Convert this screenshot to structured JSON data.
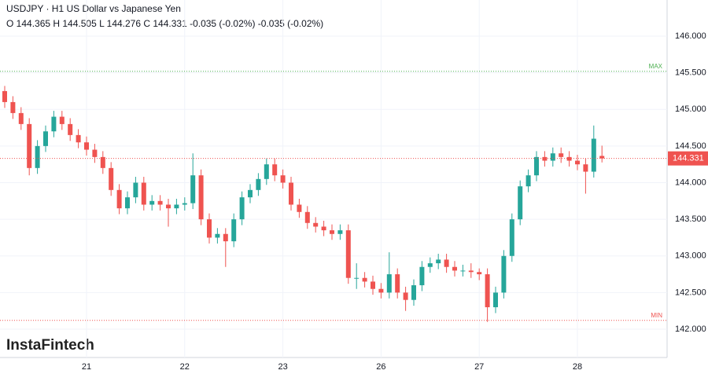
{
  "chart_data": {
    "type": "candlestick",
    "title": "USDJPY · H1 US Dollar vs Japanese Yen",
    "subtitle": "O 144.365 H 144.505 L 144.276 C 144.331 -0.035 (-0.02%) -0.035 (-0.02%)",
    "watermark": "InstaFintech",
    "up_color": "#26a69a",
    "down_color": "#ef5350",
    "grid": true,
    "ylim": [
      141.614,
      146.493
    ],
    "yticks": [
      {
        "value": 142,
        "label": "142.000"
      },
      {
        "value": 142.5,
        "label": "142.500"
      },
      {
        "value": 143,
        "label": "143.000"
      },
      {
        "value": 143.5,
        "label": "143.500"
      },
      {
        "value": 144,
        "label": "144.000"
      },
      {
        "value": 144.5,
        "label": "144.500"
      },
      {
        "value": 145,
        "label": "145.000"
      },
      {
        "value": 145.5,
        "label": "145.500"
      },
      {
        "value": 146,
        "label": "146.000"
      }
    ],
    "current_price": {
      "value": 144.331,
      "label": "144.331"
    },
    "max_line": {
      "value": 145.52,
      "label": "MAX"
    },
    "min_line": {
      "value": 142.12,
      "label": "MIN"
    },
    "categories": [
      null,
      null,
      null,
      null,
      null,
      null,
      null,
      null,
      null,
      null,
      "21",
      null,
      null,
      null,
      null,
      null,
      null,
      null,
      null,
      null,
      null,
      null,
      "22",
      null,
      null,
      null,
      null,
      null,
      null,
      null,
      null,
      null,
      null,
      null,
      "23",
      null,
      null,
      null,
      null,
      null,
      null,
      null,
      null,
      null,
      null,
      null,
      "26",
      null,
      null,
      null,
      null,
      null,
      null,
      null,
      null,
      null,
      null,
      null,
      "27",
      null,
      null,
      null,
      null,
      null,
      null,
      null,
      null,
      null,
      null,
      null,
      "28",
      null,
      null,
      null
    ],
    "open": [
      145.25,
      145.1,
      144.95,
      144.8,
      144.2,
      144.5,
      144.7,
      144.9,
      144.8,
      144.65,
      144.55,
      144.45,
      144.35,
      144.2,
      143.9,
      143.65,
      143.8,
      144.0,
      143.7,
      143.75,
      143.7,
      143.65,
      143.7,
      143.72,
      144.1,
      143.5,
      143.25,
      143.3,
      143.2,
      143.5,
      143.8,
      143.9,
      144.05,
      144.25,
      144.1,
      144.0,
      143.7,
      143.6,
      143.45,
      143.4,
      143.35,
      143.3,
      143.35,
      142.7,
      142.7,
      142.65,
      142.55,
      142.5,
      142.75,
      142.5,
      142.4,
      142.6,
      142.85,
      142.9,
      142.95,
      142.85,
      142.8,
      142.8,
      142.78,
      142.75,
      142.3,
      142.5,
      143.0,
      143.5,
      143.95,
      144.1,
      144.35,
      144.3,
      144.4,
      144.35,
      144.3,
      144.25,
      144.15,
      144.365
    ],
    "high": [
      145.32,
      145.18,
      145.03,
      144.88,
      144.58,
      144.78,
      144.98,
      144.98,
      144.88,
      144.73,
      144.63,
      144.53,
      144.43,
      144.28,
      143.98,
      143.88,
      144.08,
      144.08,
      143.83,
      143.83,
      143.78,
      143.78,
      143.8,
      144.4,
      144.18,
      143.58,
      143.38,
      143.38,
      143.58,
      143.88,
      143.98,
      144.13,
      144.33,
      144.33,
      144.18,
      144.08,
      143.78,
      143.68,
      143.53,
      143.48,
      143.43,
      143.43,
      143.43,
      142.9,
      142.78,
      142.73,
      142.63,
      143.05,
      142.83,
      142.58,
      142.68,
      142.93,
      142.98,
      143.03,
      143.03,
      142.93,
      142.88,
      142.9,
      142.83,
      142.83,
      142.58,
      143.08,
      143.58,
      144.03,
      144.18,
      144.43,
      144.43,
      144.48,
      144.48,
      144.43,
      144.38,
      144.33,
      144.78,
      144.505
    ],
    "low": [
      145.02,
      144.87,
      144.72,
      144.1,
      144.12,
      144.42,
      144.62,
      144.72,
      144.57,
      144.47,
      144.37,
      144.27,
      144.12,
      143.82,
      143.57,
      143.57,
      143.72,
      143.62,
      143.62,
      143.62,
      143.4,
      143.57,
      143.62,
      143.64,
      143.42,
      143.17,
      143.17,
      142.85,
      143.12,
      143.42,
      143.72,
      143.82,
      143.97,
      144.02,
      143.92,
      143.62,
      143.52,
      143.37,
      143.32,
      143.27,
      143.22,
      143.22,
      142.62,
      142.55,
      142.57,
      142.47,
      142.42,
      142.42,
      142.42,
      142.25,
      142.32,
      142.52,
      142.77,
      142.82,
      142.77,
      142.72,
      142.72,
      142.7,
      142.67,
      142.1,
      142.22,
      142.42,
      142.92,
      143.42,
      143.87,
      144.02,
      144.22,
      144.22,
      144.27,
      144.22,
      144.17,
      143.85,
      144.07,
      144.276
    ],
    "close": [
      145.1,
      144.95,
      144.8,
      144.2,
      144.5,
      144.7,
      144.9,
      144.8,
      144.65,
      144.55,
      144.45,
      144.35,
      144.2,
      143.9,
      143.65,
      143.8,
      144.0,
      143.7,
      143.75,
      143.7,
      143.65,
      143.7,
      143.72,
      144.1,
      143.5,
      143.25,
      143.3,
      143.2,
      143.5,
      143.8,
      143.9,
      144.05,
      144.25,
      144.1,
      144.0,
      143.7,
      143.6,
      143.45,
      143.4,
      143.35,
      143.3,
      143.35,
      142.7,
      142.7,
      142.65,
      142.55,
      142.5,
      142.75,
      142.5,
      142.4,
      142.6,
      142.85,
      142.9,
      142.95,
      142.85,
      142.8,
      142.8,
      142.78,
      142.75,
      142.3,
      142.5,
      143.0,
      143.5,
      143.95,
      144.1,
      144.35,
      144.3,
      144.4,
      144.35,
      144.3,
      144.25,
      144.15,
      144.6,
      144.331
    ]
  }
}
